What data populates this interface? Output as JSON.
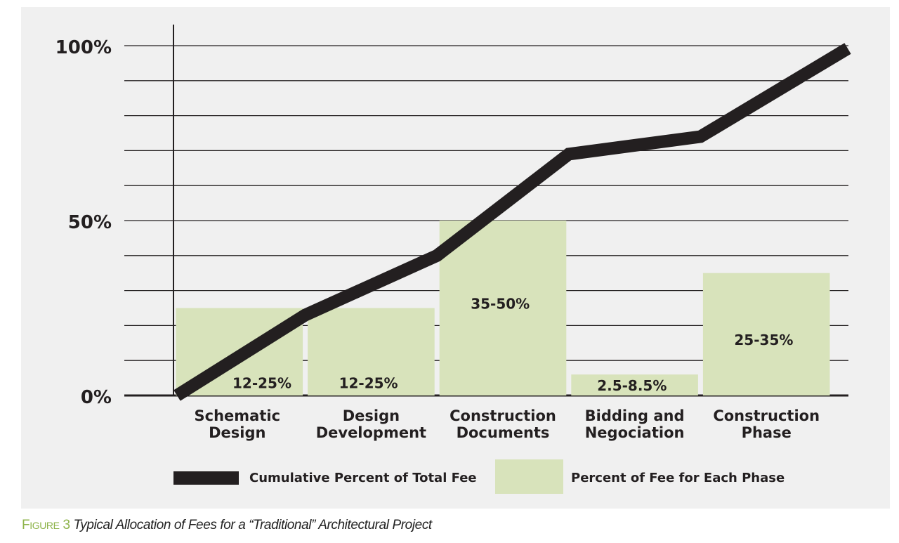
{
  "chart_data": {
    "type": "bar",
    "categories": [
      [
        "Schematic",
        "Design"
      ],
      [
        "Design",
        "Development"
      ],
      [
        "Construction",
        "Documents"
      ],
      [
        "Bidding and",
        "Negociation"
      ],
      [
        "Construction",
        "Phase"
      ]
    ],
    "series": [
      {
        "name": "Percent of Fee for Each Phase",
        "type": "bar",
        "values": [
          25,
          25,
          50,
          6,
          35
        ],
        "labels": [
          "12-25%",
          "12-25%",
          "35-50%",
          "2.5-8.5%",
          "25-35%"
        ],
        "color": "#d8e3bb"
      },
      {
        "name": "Cumulative Percent of Total Fee",
        "type": "line",
        "x": [
          0,
          1,
          2,
          3,
          4,
          5
        ],
        "values": [
          0,
          23,
          40,
          69,
          74,
          100
        ],
        "color": "#231f20"
      }
    ],
    "yticks": [
      0,
      50,
      100
    ],
    "ytick_labels": [
      "0%",
      "50%",
      "100%"
    ],
    "ylim": [
      0,
      100
    ],
    "grid": true,
    "legend_position": "bottom",
    "xlabel": "",
    "ylabel": ""
  },
  "caption": {
    "figure_first": "F",
    "figure_rest": "igure",
    "figure_number": "3",
    "text": "Typical Allocation of Fees for a “Traditional” Architectural Project"
  }
}
